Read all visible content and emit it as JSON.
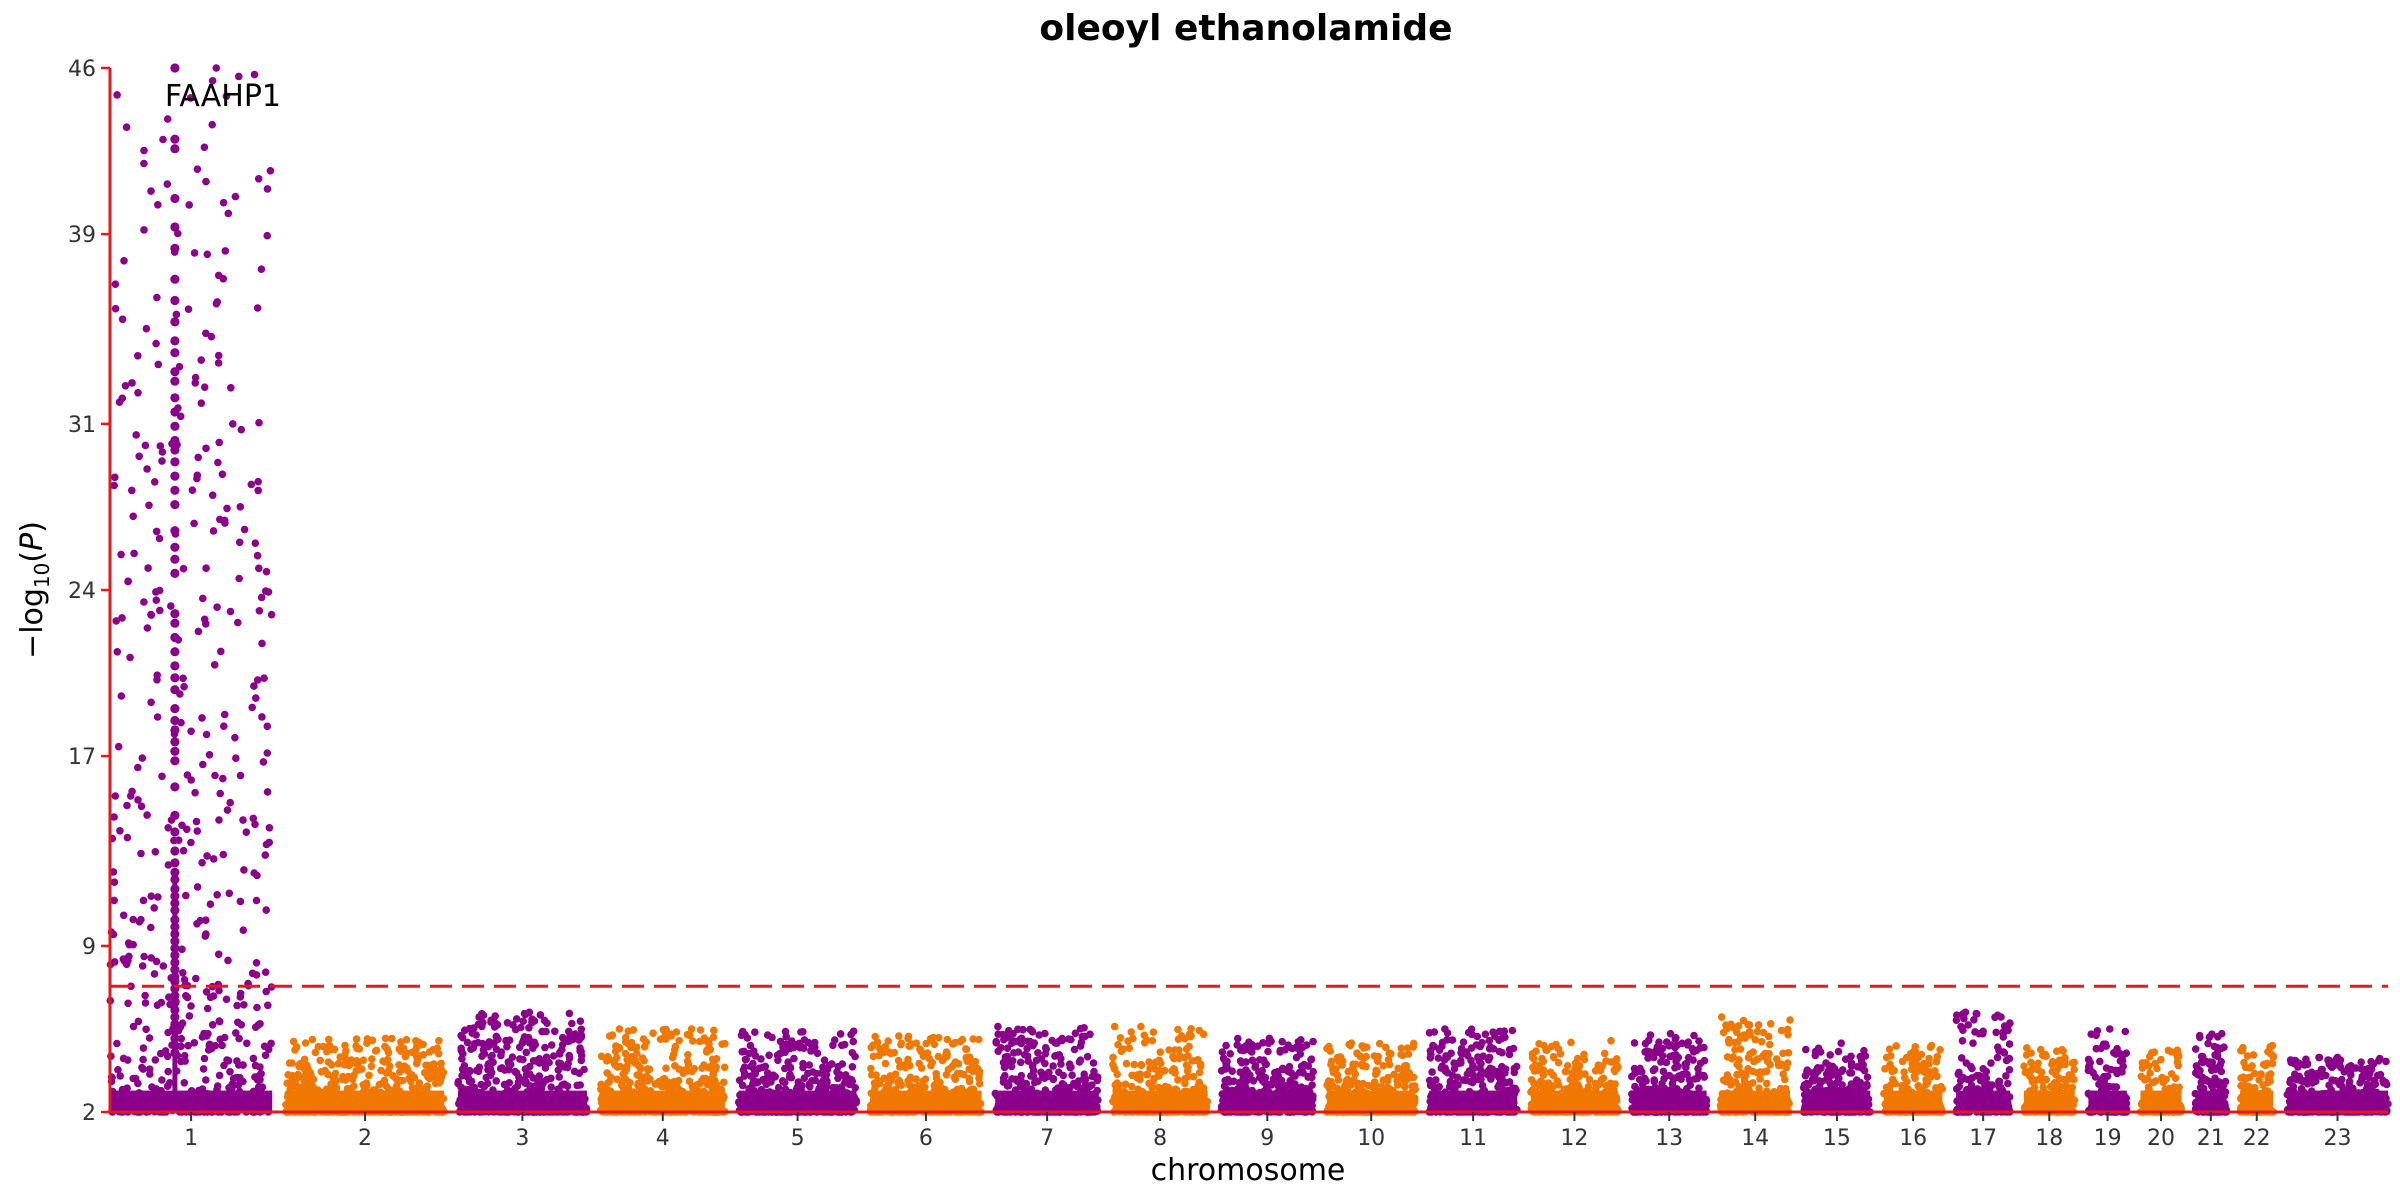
{
  "chart_data": {
    "type": "scatter",
    "subtype": "manhattan",
    "title": "oleoyl ethanolamide",
    "xlabel": "chromosome",
    "ylabel": "−log10(P)",
    "ylim": [
      2,
      46
    ],
    "yticks": [
      "2",
      "9",
      "17",
      "24",
      "31",
      "39",
      "46"
    ],
    "grid": false,
    "legend": "none",
    "significance_threshold": 7.3,
    "colors": {
      "odd": "#8b008b",
      "even": "#f07800",
      "axis": "#e31a1c",
      "threshold": "#e31a1c"
    },
    "chromosomes": [
      {
        "label": "1",
        "length": 249,
        "max": 46.0
      },
      {
        "label": "2",
        "length": 243,
        "max": 5.1
      },
      {
        "label": "3",
        "length": 198,
        "max": 6.2
      },
      {
        "label": "4",
        "length": 191,
        "max": 5.5
      },
      {
        "label": "5",
        "length": 181,
        "max": 5.4
      },
      {
        "label": "6",
        "length": 171,
        "max": 5.2
      },
      {
        "label": "7",
        "length": 159,
        "max": 5.6
      },
      {
        "label": "8",
        "length": 146,
        "max": 5.6
      },
      {
        "label": "9",
        "length": 141,
        "max": 5.1
      },
      {
        "label": "10",
        "length": 136,
        "max": 4.9
      },
      {
        "label": "11",
        "length": 135,
        "max": 5.5
      },
      {
        "label": "12",
        "length": 134,
        "max": 5.0
      },
      {
        "label": "13",
        "length": 115,
        "max": 5.3
      },
      {
        "label": "14",
        "length": 107,
        "max": 6.0
      },
      {
        "label": "15",
        "length": 102,
        "max": 4.9
      },
      {
        "label": "16",
        "length": 90,
        "max": 4.8
      },
      {
        "label": "17",
        "length": 83,
        "max": 6.2
      },
      {
        "label": "18",
        "length": 78,
        "max": 4.7
      },
      {
        "label": "19",
        "length": 59,
        "max": 5.5
      },
      {
        "label": "20",
        "length": 63,
        "max": 4.6
      },
      {
        "label": "21",
        "length": 48,
        "max": 5.3
      },
      {
        "label": "22",
        "length": 51,
        "max": 4.8
      },
      {
        "label": "23",
        "length": 155,
        "max": 4.3
      }
    ],
    "peak": {
      "chromosome": "1",
      "position_fraction": 0.4,
      "values": [
        46.0,
        43.0,
        42.6,
        40.5,
        39.3,
        38.4,
        37.1,
        36.2,
        35.3,
        34.5,
        34.0,
        33.2,
        32.8,
        32.1,
        31.5,
        30.9,
        30.3,
        29.9,
        29.4,
        28.8,
        28.2,
        27.6,
        26.5,
        25.8,
        25.3,
        24.7,
        23.0,
        22.6,
        22.0,
        21.4,
        20.8,
        20.3,
        19.8,
        19.0,
        18.5,
        18.1,
        17.6,
        17.2,
        16.8,
        15.7,
        14.5,
        13.8,
        13.0,
        12.5,
        12.1,
        11.8,
        11.4,
        11.1,
        10.8,
        10.5,
        10.1,
        9.8,
        9.5,
        9.2,
        8.9,
        8.6,
        8.3,
        8.0,
        7.7,
        7.5,
        7.2,
        6.9,
        6.6,
        6.3,
        6.0,
        5.7,
        5.4,
        5.1,
        4.8,
        4.5
      ]
    },
    "annotations": [
      {
        "text": "FAAHP1",
        "chromosome": "1"
      }
    ]
  }
}
